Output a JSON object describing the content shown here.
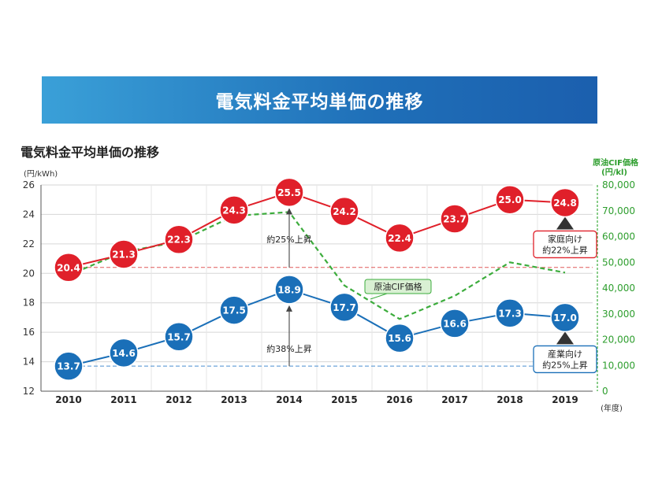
{
  "banner": {
    "title": "電気料金平均単価の推移"
  },
  "chart_data": {
    "type": "line",
    "title": "電気料金平均単価の推移",
    "categories": [
      "2010",
      "2011",
      "2012",
      "2013",
      "2014",
      "2015",
      "2016",
      "2017",
      "2018",
      "2019"
    ],
    "x_unit": "(年度)",
    "y_left": {
      "unit": "(円/kWh)",
      "lim": [
        12,
        26
      ],
      "ticks": [
        12,
        14,
        16,
        18,
        20,
        22,
        24,
        26
      ]
    },
    "y_right": {
      "unit_line1": "原油CIF価格",
      "unit_line2": "(円/kl)",
      "lim": [
        0,
        80000
      ],
      "ticks": [
        "0",
        "10,000",
        "20,000",
        "30,000",
        "40,000",
        "50,000",
        "60,000",
        "70,000",
        "80,000"
      ]
    },
    "series": [
      {
        "name": "家庭向け",
        "axis": "left",
        "color": "#e0202a",
        "values": [
          20.4,
          21.3,
          22.3,
          24.3,
          25.5,
          24.2,
          22.4,
          23.7,
          25.0,
          24.8
        ],
        "labels": [
          "20.4",
          "21.3",
          "22.3",
          "24.3",
          "25.5",
          "24.2",
          "22.4",
          "23.7",
          "25.0",
          "24.8"
        ]
      },
      {
        "name": "産業向け",
        "axis": "left",
        "color": "#1a6fb8",
        "values": [
          13.7,
          14.6,
          15.7,
          17.5,
          18.9,
          17.7,
          15.6,
          16.6,
          17.3,
          17.0
        ],
        "labels": [
          "13.7",
          "14.6",
          "15.7",
          "17.5",
          "18.9",
          "17.7",
          "15.6",
          "16.6",
          "17.3",
          "17.0"
        ]
      },
      {
        "name": "原油CIF価格",
        "axis": "right",
        "color": "#3cac3c",
        "values": [
          45000,
          54000,
          58000,
          68000,
          69500,
          41000,
          28000,
          37000,
          50000,
          46000
        ]
      }
    ],
    "annotations": {
      "rise_residential": "約25%上昇",
      "rise_industrial": "約38%上昇",
      "residential_box_line1": "家庭向け",
      "residential_box_line2": "約22%上昇",
      "industrial_box_line1": "産業向け",
      "industrial_box_line2": "約25%上昇",
      "crude_label": "原油CIF価格"
    },
    "grid": true,
    "legend": "none"
  }
}
